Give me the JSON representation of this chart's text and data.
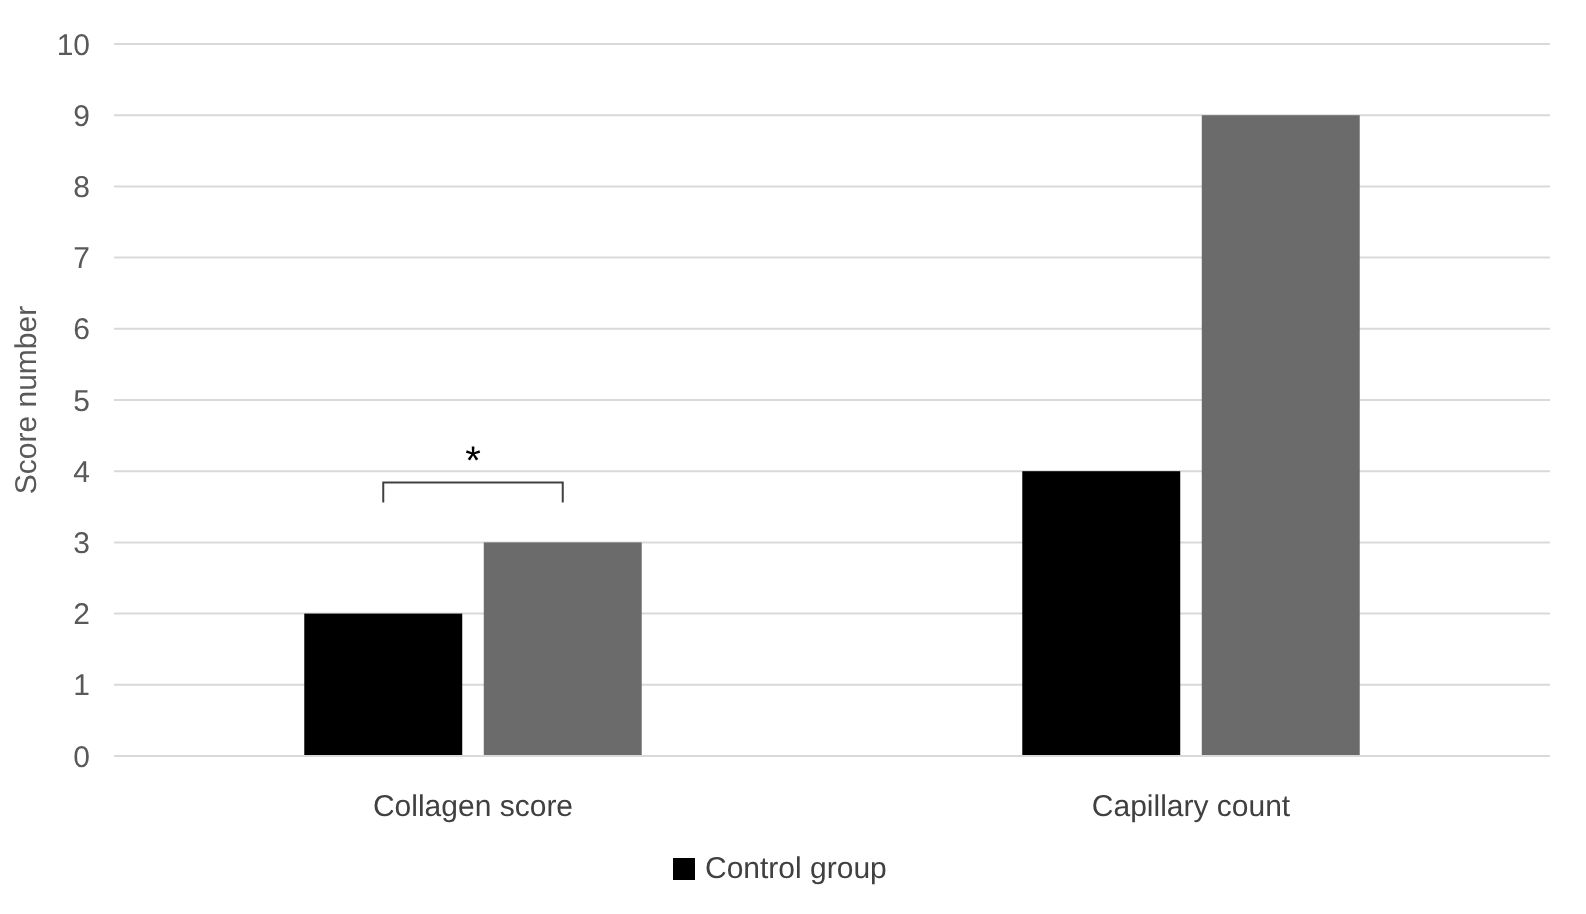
{
  "chart_data": {
    "type": "bar",
    "ylabel": "Score number",
    "categories": [
      "Collagen score",
      "Capillary count"
    ],
    "series": [
      {
        "name": "Control group",
        "color": "#000000",
        "values": [
          2,
          4
        ]
      },
      {
        "color": "#6b6b6b",
        "values": [
          3,
          9
        ]
      }
    ],
    "ylim": [
      0,
      10
    ],
    "yticks": [
      0,
      1,
      2,
      3,
      4,
      5,
      6,
      7,
      8,
      9,
      10
    ],
    "grid": "y",
    "legend": "bottom",
    "annotations": [
      "*"
    ]
  }
}
